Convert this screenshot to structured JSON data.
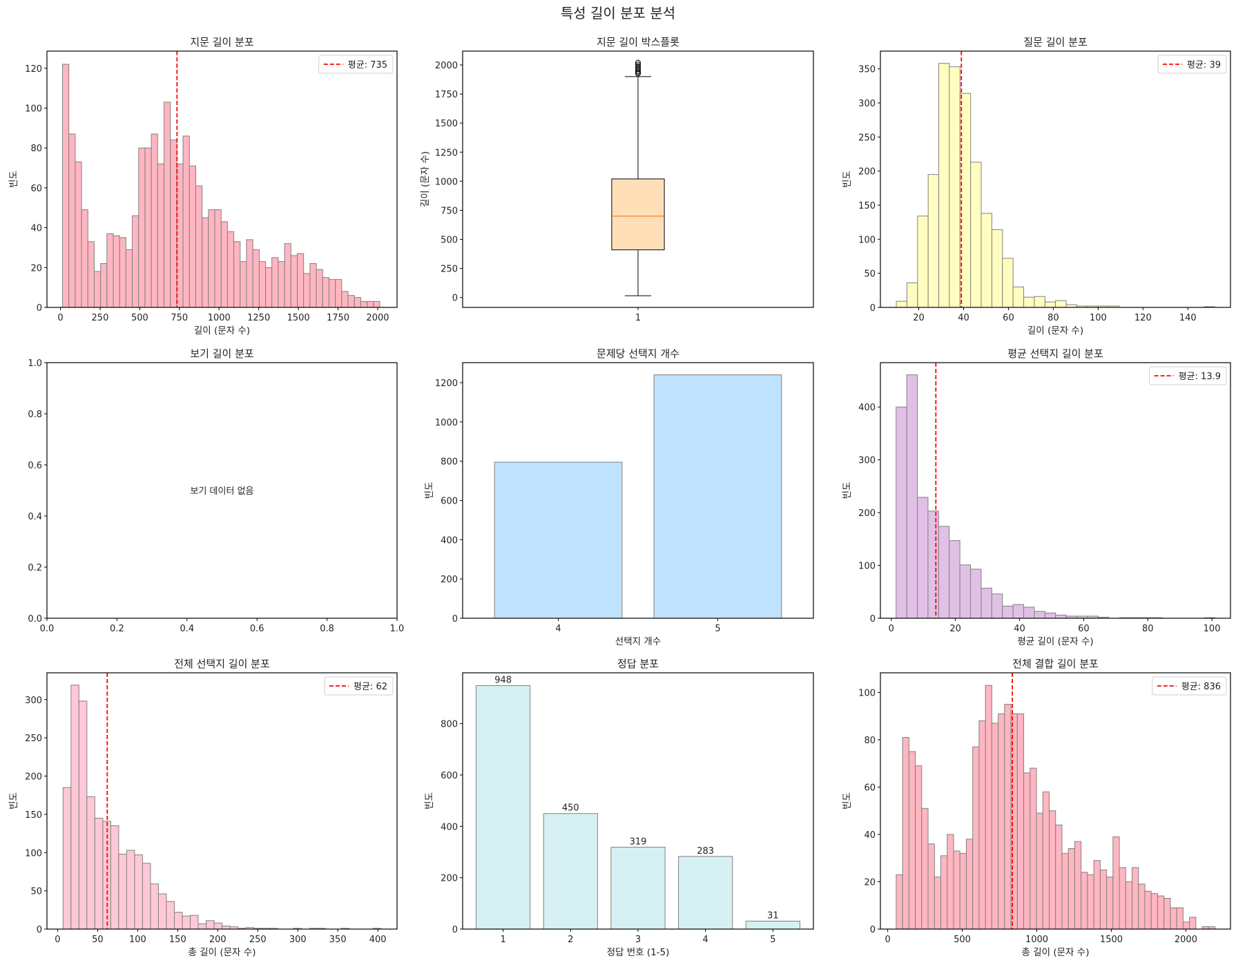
{
  "figure": {
    "title": "특성 길이 분포 분석"
  },
  "chart_data": [
    {
      "type": "histogram",
      "title": "지문 길이 분포",
      "xlabel": "길이 (문자 수)",
      "ylabel": "빈도",
      "xlim": [
        -85,
        2122
      ],
      "ylim": [
        0,
        128.6
      ],
      "xticks": [
        0,
        250,
        500,
        750,
        1000,
        1250,
        1500,
        1750,
        2000
      ],
      "yticks": [
        0,
        20,
        40,
        60,
        80,
        100,
        120
      ],
      "bin_range": [
        13,
        2013
      ],
      "values": [
        122,
        87,
        73,
        49,
        33,
        18,
        22,
        37,
        36,
        35,
        29,
        46,
        80,
        80,
        87,
        72,
        103,
        84,
        72,
        86,
        71,
        61,
        45,
        49,
        49,
        43,
        38,
        33,
        23,
        34,
        29,
        23,
        20,
        25,
        23,
        32,
        26,
        27,
        17,
        22,
        19,
        15,
        14,
        14,
        8,
        6,
        5,
        3,
        3,
        3
      ],
      "mean_line": {
        "value": 735,
        "label": "평균: 735",
        "color": "#ff0000"
      },
      "color": "#ffb6c1",
      "edgecolor": "#808080",
      "grid": false,
      "legend": "top-right"
    },
    {
      "type": "box",
      "title": "지문 길이 박스플롯",
      "xlabel": "",
      "ylabel": "길이 (문자 수)",
      "xlim": [
        0.5,
        1.5
      ],
      "ylim": [
        -85,
        2119
      ],
      "xticks": [
        "1"
      ],
      "yticks": [
        0,
        250,
        500,
        750,
        1000,
        1250,
        1500,
        1750,
        2000
      ],
      "box": {
        "whisker_low": 15,
        "q1": 410,
        "median": 700,
        "q3": 1020,
        "whisker_high": 1900,
        "outliers": [
          1925,
          1935,
          1945,
          1960,
          1975,
          1990,
          2005,
          2020
        ]
      },
      "color": "#ffdfb8",
      "median_color": "#ff7f0e",
      "grid": false
    },
    {
      "type": "histogram",
      "title": "질문 길이 분포",
      "xlabel": "길이 (문자 수)",
      "ylabel": "빈도",
      "xlim": [
        2.9,
        159
      ],
      "ylim": [
        0,
        376
      ],
      "xticks": [
        20,
        40,
        60,
        80,
        100,
        120,
        140
      ],
      "yticks": [
        0,
        50,
        100,
        150,
        200,
        250,
        300,
        350
      ],
      "bin_range": [
        10,
        152
      ],
      "values": [
        9,
        36,
        134,
        195,
        358,
        353,
        314,
        213,
        138,
        114,
        72,
        30,
        15,
        16,
        8,
        10,
        4,
        2,
        2,
        2,
        2,
        0,
        0,
        0,
        0,
        0,
        0,
        0,
        0,
        1
      ],
      "mean_line": {
        "value": 39,
        "label": "평균: 39",
        "color": "#ff0000"
      },
      "color": "#fffec0",
      "edgecolor": "#808080",
      "grid": false,
      "legend": "top-right"
    },
    {
      "type": "empty",
      "title": "보기 길이 분포",
      "xlabel": "",
      "ylabel": "",
      "xlim": [
        0,
        1
      ],
      "ylim": [
        0,
        1
      ],
      "xticks": [
        "0.0",
        "0.2",
        "0.4",
        "0.6",
        "0.8",
        "1.0"
      ],
      "yticks": [
        "0.0",
        "0.2",
        "0.4",
        "0.6",
        "0.8",
        "1.0"
      ],
      "annotation": "보기 데이터 없음",
      "grid": false
    },
    {
      "type": "bar",
      "title": "문제당 선택지 개수",
      "xlabel": "선택지 개수",
      "ylabel": "빈도",
      "xlim": [
        3.4,
        5.6
      ],
      "ylim": [
        0,
        1302
      ],
      "categories": [
        "4",
        "5"
      ],
      "values": [
        795,
        1240
      ],
      "xticks": [
        "4",
        "5"
      ],
      "yticks": [
        0,
        200,
        400,
        600,
        800,
        1000,
        1200
      ],
      "color": "#bfe2ff",
      "edgecolor": "#808080",
      "grid": false
    },
    {
      "type": "histogram",
      "title": "평균 선택지 길이 분포",
      "xlabel": "평균 길이 (문자 수)",
      "ylabel": "빈도",
      "xlim": [
        -3.4,
        105.8
      ],
      "ylim": [
        0,
        484
      ],
      "xticks": [
        0,
        20,
        40,
        60,
        80,
        100
      ],
      "yticks": [
        0,
        100,
        200,
        300,
        400
      ],
      "bin_range": [
        1.5,
        101
      ],
      "values": [
        400,
        461,
        229,
        203,
        174,
        147,
        101,
        93,
        57,
        46,
        23,
        26,
        21,
        13,
        10,
        6,
        4,
        4,
        4,
        2,
        0,
        1,
        1,
        1,
        1,
        0,
        0,
        0,
        0,
        1
      ],
      "mean_line": {
        "value": 13.9,
        "label": "평균: 13.9",
        "color": "#ff0000"
      },
      "color": "#e1c0e6",
      "edgecolor": "#808080",
      "grid": false,
      "legend": "top-right"
    },
    {
      "type": "histogram",
      "title": "전체 선택지 길이 분포",
      "xlabel": "총 길이 (문자 수)",
      "ylabel": "빈도",
      "xlim": [
        -13.3,
        424
      ],
      "ylim": [
        0,
        335
      ],
      "xticks": [
        0,
        50,
        100,
        150,
        200,
        250,
        300,
        350,
        400
      ],
      "yticks": [
        0,
        50,
        100,
        150,
        200,
        250,
        300
      ],
      "bin_range": [
        6.8,
        404
      ],
      "values": [
        185,
        319,
        298,
        173,
        145,
        141,
        135,
        98,
        103,
        97,
        86,
        59,
        46,
        36,
        22,
        17,
        18,
        7,
        11,
        8,
        4,
        3,
        1,
        2,
        1,
        1,
        1,
        0,
        0,
        1,
        0,
        1,
        1,
        0,
        0,
        1,
        0,
        0,
        0,
        1
      ],
      "mean_line": {
        "value": 62,
        "label": "평균: 62",
        "color": "#ff0000"
      },
      "color": "#ffc8d6",
      "edgecolor": "#808080",
      "grid": false,
      "legend": "top-right"
    },
    {
      "type": "bar",
      "title": "정답 분포",
      "xlabel": "정답 번호 (1-5)",
      "ylabel": "빈도",
      "xlim": [
        0.4,
        5.6
      ],
      "ylim": [
        0,
        998
      ],
      "categories": [
        "1",
        "2",
        "3",
        "4",
        "5"
      ],
      "values": [
        948,
        450,
        319,
        283,
        31
      ],
      "xticks": [
        "1",
        "2",
        "3",
        "4",
        "5"
      ],
      "yticks": [
        0,
        200,
        400,
        600,
        800
      ],
      "bar_labels": true,
      "color": "#d6f0f4",
      "edgecolor": "#808080",
      "grid": false
    },
    {
      "type": "histogram",
      "title": "전체 결합 길이 분포",
      "xlabel": "총 길이 (문자 수)",
      "ylabel": "빈도",
      "xlim": [
        -49,
        2299
      ],
      "ylim": [
        0,
        108.3
      ],
      "xticks": [
        0,
        500,
        1000,
        1500,
        2000
      ],
      "yticks": [
        0,
        20,
        40,
        60,
        80,
        100
      ],
      "bin_range": [
        57,
        2195
      ],
      "values": [
        23,
        81,
        75,
        69,
        51,
        36,
        22,
        31,
        40,
        33,
        32,
        38,
        77,
        88,
        103,
        87,
        91,
        95,
        91,
        91,
        66,
        68,
        49,
        58,
        50,
        44,
        32,
        34,
        37,
        24,
        23,
        29,
        25,
        22,
        39,
        26,
        20,
        26,
        19,
        16,
        15,
        14,
        13,
        9,
        9,
        3,
        5,
        0,
        1,
        1
      ],
      "mean_line": {
        "value": 836,
        "label": "평균: 836",
        "color": "#ff0000"
      },
      "color": "#ffb6c1",
      "edgecolor": "#808080",
      "grid": false,
      "legend": "top-right"
    }
  ]
}
